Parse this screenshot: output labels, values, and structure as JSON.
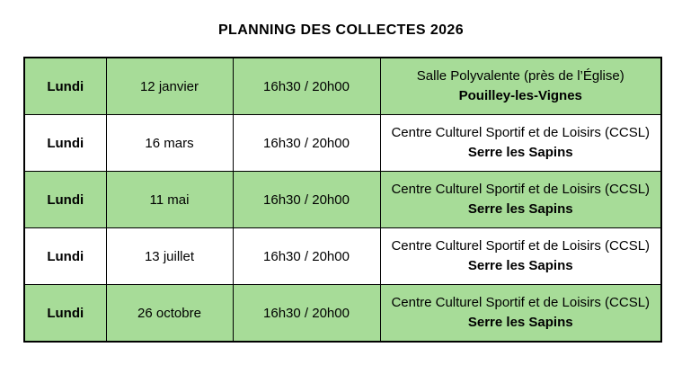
{
  "title": "PLANNING DES COLLECTES 2026",
  "colors": {
    "row_highlight_green": "#a7dc98",
    "border": "#000000",
    "text": "#000000",
    "background": "#ffffff"
  },
  "table": {
    "rows": [
      {
        "day": "Lundi",
        "date": "12 janvier",
        "time": "16h30 / 20h00",
        "venue": "Salle Polyvalente (près de l’Église)",
        "city": "Pouilley-les-Vignes",
        "highlight": true
      },
      {
        "day": "Lundi",
        "date": "16 mars",
        "time": "16h30 / 20h00",
        "venue": "Centre Culturel Sportif et de Loisirs (CCSL)",
        "city": "Serre les Sapins",
        "highlight": false
      },
      {
        "day": "Lundi",
        "date": "11 mai",
        "time": "16h30 / 20h00",
        "venue": "Centre Culturel Sportif et de Loisirs (CCSL)",
        "city": "Serre les Sapins",
        "highlight": true
      },
      {
        "day": "Lundi",
        "date": "13 juillet",
        "time": "16h30 / 20h00",
        "venue": "Centre Culturel Sportif et de Loisirs (CCSL)",
        "city": "Serre les Sapins",
        "highlight": false
      },
      {
        "day": "Lundi",
        "date": "26 octobre",
        "time": "16h30 / 20h00",
        "venue": "Centre Culturel Sportif et de Loisirs (CCSL)",
        "city": "Serre les Sapins",
        "highlight": true
      }
    ]
  }
}
